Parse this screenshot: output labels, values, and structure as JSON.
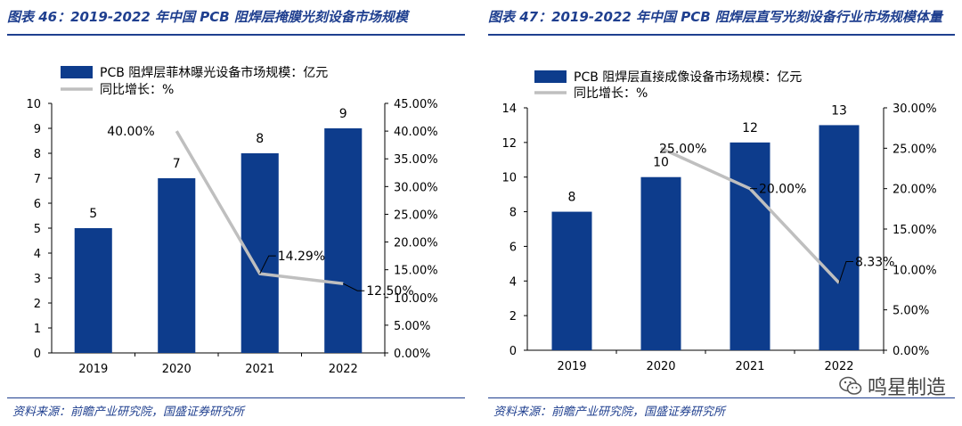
{
  "chart_data": [
    {
      "type": "bar",
      "title": "图表 46：2019-2022 年中国 PCB 阻焊层掩膜光刻设备市场规模",
      "categories": [
        "2019",
        "2020",
        "2021",
        "2022"
      ],
      "series": [
        {
          "name": "PCB 阻焊层菲林曝光设备市场规模：亿元",
          "type": "bar",
          "axis": "left",
          "values": [
            5,
            7,
            8,
            9
          ],
          "labels": [
            "5",
            "7",
            "8",
            "9"
          ]
        },
        {
          "name": "同比增长：%",
          "type": "line",
          "axis": "right",
          "values": [
            null,
            40.0,
            14.29,
            12.5
          ],
          "labels": [
            "",
            "40.00%",
            "14.29%",
            "12.50%"
          ]
        }
      ],
      "left_axis": {
        "min": 0,
        "max": 10,
        "step": 1,
        "ticks": [
          "0",
          "1",
          "2",
          "3",
          "4",
          "5",
          "6",
          "7",
          "8",
          "9",
          "10"
        ]
      },
      "right_axis": {
        "min": 0,
        "max": 45,
        "step": 5,
        "ticks": [
          "0.00%",
          "5.00%",
          "10.00%",
          "15.00%",
          "20.00%",
          "25.00%",
          "30.00%",
          "35.00%",
          "40.00%",
          "45.00%"
        ]
      },
      "colors": {
        "bar": "#0d3c8c",
        "line": "#bfbfbf"
      },
      "source": "资料来源：前瞻产业研究院，国盛证券研究所"
    },
    {
      "type": "bar",
      "title": "图表 47：2019-2022 年中国 PCB 阻焊层直写光刻设备行业市场规模体量",
      "categories": [
        "2019",
        "2020",
        "2021",
        "2022"
      ],
      "series": [
        {
          "name": "PCB 阻焊层直接成像设备市场规模：亿元",
          "type": "bar",
          "axis": "left",
          "values": [
            8,
            10,
            12,
            13
          ],
          "labels": [
            "8",
            "10",
            "12",
            "13"
          ]
        },
        {
          "name": "同比增长：%",
          "type": "line",
          "axis": "right",
          "values": [
            null,
            25.0,
            20.0,
            8.33
          ],
          "labels": [
            "",
            "25.00%",
            "20.00%",
            "8.33%"
          ]
        }
      ],
      "left_axis": {
        "min": 0,
        "max": 14,
        "step": 2,
        "ticks": [
          "0",
          "2",
          "4",
          "6",
          "8",
          "10",
          "12",
          "14"
        ]
      },
      "right_axis": {
        "min": 0,
        "max": 30,
        "step": 5,
        "ticks": [
          "0.00%",
          "5.00%",
          "10.00%",
          "15.00%",
          "20.00%",
          "25.00%",
          "30.00%"
        ]
      },
      "colors": {
        "bar": "#0d3c8c",
        "line": "#bfbfbf"
      },
      "source": "资料来源：前瞻产业研究院，国盛证券研究所"
    }
  ],
  "watermark": {
    "text": "鸣星制造",
    "icon": "wechat-icon"
  }
}
